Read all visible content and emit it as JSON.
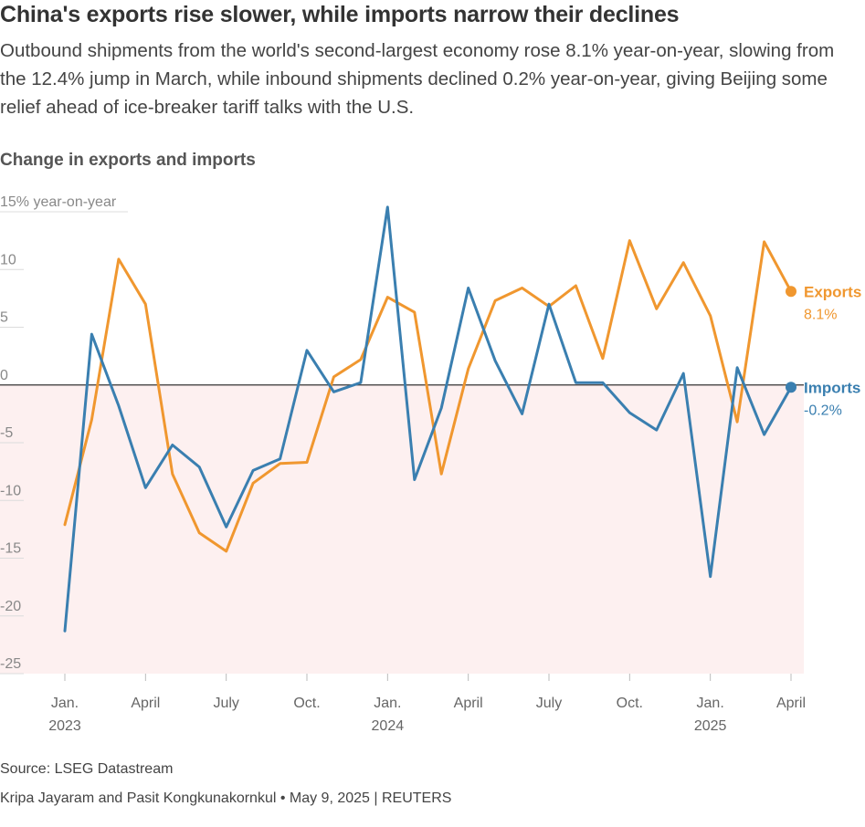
{
  "title": "China's exports rise slower, while imports narrow their declines",
  "subtitle": "Outbound shipments from the world's second-largest economy rose 8.1% year-on-year, slowing from the 12.4% jump in March, while inbound shipments declined 0.2% year-on-year, giving Beijing some relief ahead of ice-breaker tariff talks with the U.S.",
  "chart_heading": "Change in exports and imports",
  "source": "Source: LSEG Datastream",
  "credit": "Kripa Jayaram and Pasit Kongkunakornkul • May 9, 2025 | REUTERS",
  "chart_data": {
    "type": "line",
    "ylabel": "15% year-on-year",
    "ylim": [
      -25,
      15
    ],
    "yticks": [
      15,
      10,
      5,
      0,
      -5,
      -10,
      -15,
      -20,
      -25
    ],
    "ytick_labels": [
      "15% year-on-year",
      "10",
      "5",
      "0",
      "-5",
      "-10",
      "-15",
      "-20",
      "-25"
    ],
    "x": [
      "2023-01",
      "2023-02",
      "2023-03",
      "2023-04",
      "2023-05",
      "2023-06",
      "2023-07",
      "2023-08",
      "2023-09",
      "2023-10",
      "2023-11",
      "2023-12",
      "2024-01",
      "2024-02",
      "2024-03",
      "2024-04",
      "2024-05",
      "2024-06",
      "2024-07",
      "2024-08",
      "2024-09",
      "2024-10",
      "2024-11",
      "2024-12",
      "2025-01",
      "2025-02",
      "2025-03",
      "2025-04"
    ],
    "xticks": [
      {
        "index": 0,
        "label": "Jan.",
        "year": "2023"
      },
      {
        "index": 3,
        "label": "April",
        "year": ""
      },
      {
        "index": 6,
        "label": "July",
        "year": ""
      },
      {
        "index": 9,
        "label": "Oct.",
        "year": ""
      },
      {
        "index": 12,
        "label": "Jan.",
        "year": "2024"
      },
      {
        "index": 15,
        "label": "April",
        "year": ""
      },
      {
        "index": 18,
        "label": "July",
        "year": ""
      },
      {
        "index": 21,
        "label": "Oct.",
        "year": ""
      },
      {
        "index": 24,
        "label": "Jan.",
        "year": "2025"
      },
      {
        "index": 27,
        "label": "April",
        "year": ""
      }
    ],
    "negative_region_shaded": true,
    "zero_line": true,
    "series": [
      {
        "name": "Exports",
        "color": "#f0972f",
        "end_label": "8.1%",
        "values": [
          -12.1,
          -3.0,
          10.9,
          7.0,
          -7.7,
          -12.8,
          -14.4,
          -8.5,
          -6.8,
          -6.7,
          0.7,
          2.2,
          7.6,
          6.3,
          -7.7,
          1.4,
          7.3,
          8.4,
          6.8,
          8.6,
          2.3,
          12.5,
          6.6,
          10.6,
          6.0,
          -3.2,
          12.4,
          8.1
        ]
      },
      {
        "name": "Imports",
        "color": "#3a7fb0",
        "end_label": "-0.2%",
        "values": [
          -21.3,
          4.4,
          -1.8,
          -8.9,
          -5.2,
          -7.1,
          -12.3,
          -7.4,
          -6.4,
          3.0,
          -0.6,
          0.2,
          15.4,
          -8.2,
          -2.0,
          8.4,
          2.1,
          -2.5,
          7.0,
          0.2,
          0.2,
          -2.4,
          -3.9,
          1.0,
          -16.6,
          1.5,
          -4.3,
          -0.2
        ]
      }
    ]
  }
}
